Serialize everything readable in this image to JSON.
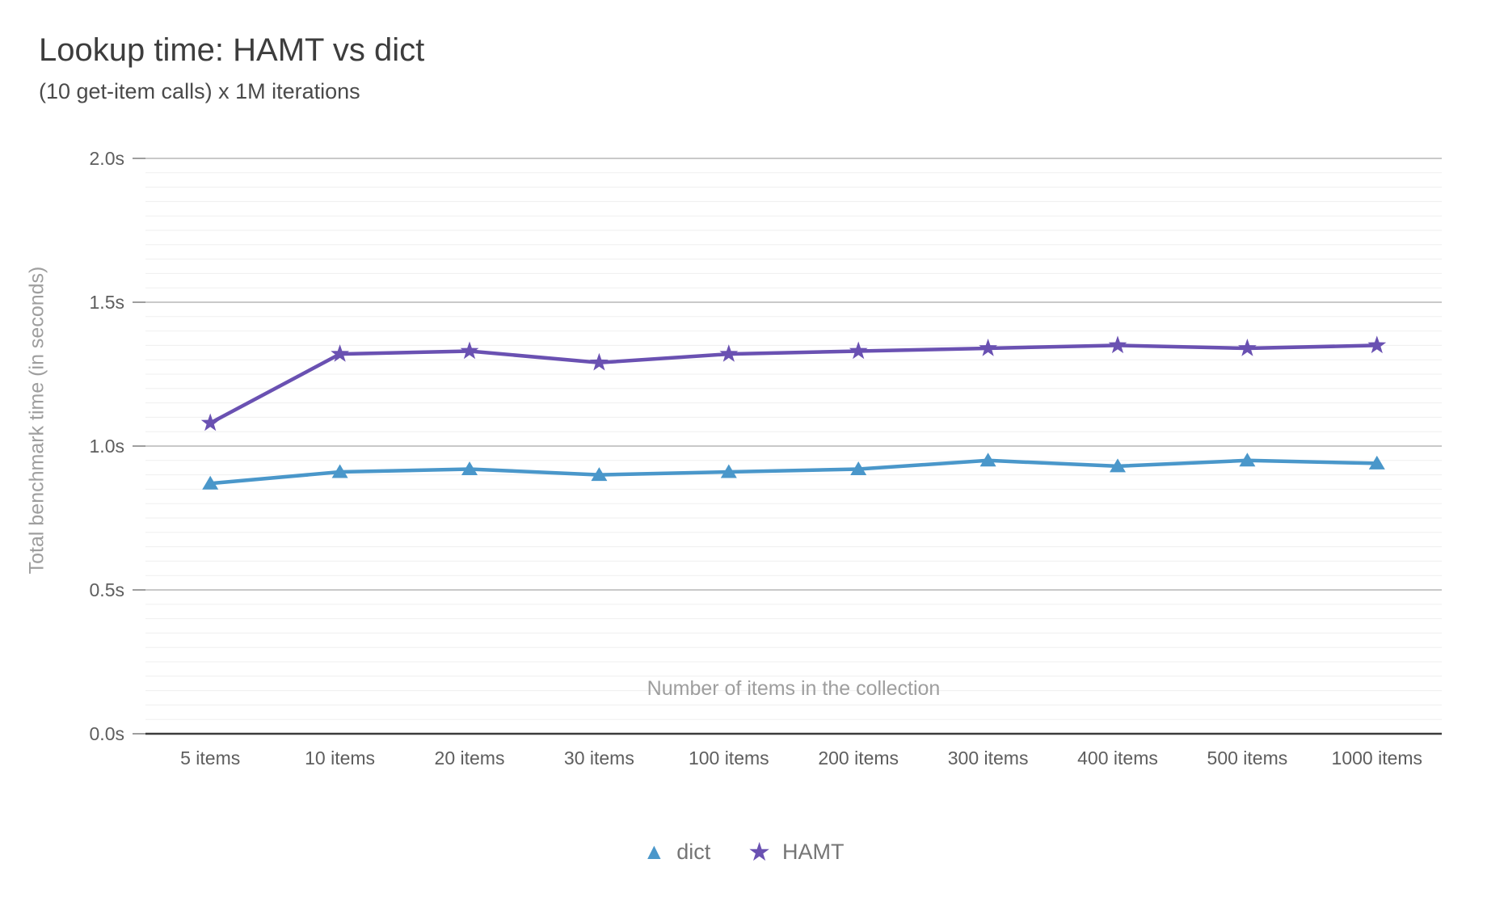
{
  "title": "Lookup time: HAMT vs dict",
  "subtitle": "(10 get-item calls) x 1M iterations",
  "chart_data": {
    "type": "line",
    "categories": [
      "5 items",
      "10 items",
      "20 items",
      "30 items",
      "100 items",
      "200 items",
      "300 items",
      "400 items",
      "500 items",
      "1000 items"
    ],
    "series": [
      {
        "name": "dict",
        "marker": "triangle",
        "color": "#4a97ca",
        "values": [
          0.87,
          0.91,
          0.92,
          0.9,
          0.91,
          0.92,
          0.95,
          0.93,
          0.95,
          0.94
        ]
      },
      {
        "name": "HAMT",
        "marker": "star",
        "color": "#6a51b2",
        "values": [
          1.08,
          1.32,
          1.33,
          1.29,
          1.32,
          1.33,
          1.34,
          1.35,
          1.34,
          1.35
        ]
      }
    ],
    "xlabel": "Number of items in the collection",
    "ylabel": "Total benchmark time (in seconds)",
    "y_ticks": [
      "0.0s",
      "0.5s",
      "1.0s",
      "1.5s",
      "2.0s"
    ],
    "y_tick_values": [
      0.0,
      0.5,
      1.0,
      1.5,
      2.0
    ],
    "ylim": [
      0,
      2.0
    ],
    "major_grid_step": 0.5,
    "minor_grid_step": 0.05,
    "grid": true,
    "legend_position": "bottom"
  },
  "colors": {
    "dict_series": "#4a97ca",
    "hamt_series": "#6a51b2",
    "major_grid": "#c9c9c9",
    "minor_grid": "#efefef",
    "axis_line": "#3b3b3b",
    "tick_stub": "#9e9e9e",
    "tick_text": "#5e5e5e",
    "title_text": "#3d3d3d",
    "subtitle_text": "#4a4a4a",
    "axis_title_text": "#9e9e9e",
    "legend_text": "#757575"
  }
}
